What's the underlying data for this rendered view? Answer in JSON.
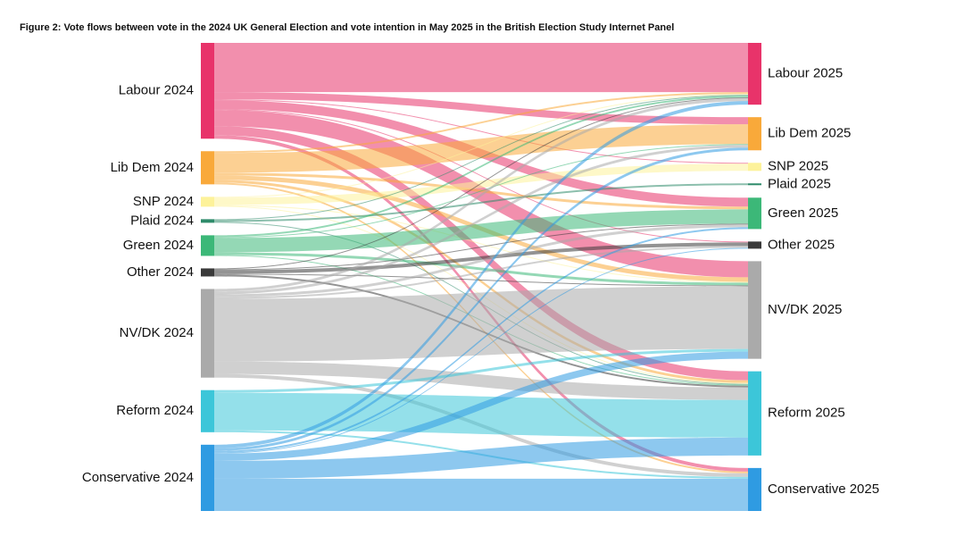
{
  "chart_data": {
    "type": "sankey",
    "title": "Figure 2: Vote flows between vote in the 2024 UK General Election and vote intention in May 2025 in the British Election Study Internet Panel",
    "left_nodes": [
      {
        "name": "Labour 2024",
        "color": "#e8336a"
      },
      {
        "name": "Lib Dem 2024",
        "color": "#f9a93a"
      },
      {
        "name": "SNP 2024",
        "color": "#fdf29a"
      },
      {
        "name": "Plaid 2024",
        "color": "#2e8b6a"
      },
      {
        "name": "Green 2024",
        "color": "#3cb878"
      },
      {
        "name": "Other 2024",
        "color": "#3a3a3a"
      },
      {
        "name": "NV/DK 2024",
        "color": "#aaaaaa"
      },
      {
        "name": "Reform 2024",
        "color": "#3cc6d9"
      },
      {
        "name": "Conservative 2024",
        "color": "#2f9be2"
      }
    ],
    "right_nodes": [
      {
        "name": "Labour 2025",
        "color": "#e8336a"
      },
      {
        "name": "Lib Dem 2025",
        "color": "#f9a93a"
      },
      {
        "name": "SNP 2025",
        "color": "#fdf29a"
      },
      {
        "name": "Plaid 2025",
        "color": "#2e8b6a"
      },
      {
        "name": "Green 2025",
        "color": "#3cb878"
      },
      {
        "name": "Other 2025",
        "color": "#3a3a3a"
      },
      {
        "name": "NV/DK 2025",
        "color": "#aaaaaa"
      },
      {
        "name": "Reform 2025",
        "color": "#3cc6d9"
      },
      {
        "name": "Conservative 2025",
        "color": "#2f9be2"
      }
    ],
    "flows": [
      {
        "source": 0,
        "target": 0,
        "value": 55
      },
      {
        "source": 0,
        "target": 1,
        "value": 8
      },
      {
        "source": 0,
        "target": 2,
        "value": 1
      },
      {
        "source": 0,
        "target": 4,
        "value": 10
      },
      {
        "source": 0,
        "target": 5,
        "value": 1
      },
      {
        "source": 0,
        "target": 6,
        "value": 18
      },
      {
        "source": 0,
        "target": 7,
        "value": 10
      },
      {
        "source": 0,
        "target": 8,
        "value": 4
      },
      {
        "source": 1,
        "target": 0,
        "value": 2
      },
      {
        "source": 1,
        "target": 1,
        "value": 22
      },
      {
        "source": 1,
        "target": 4,
        "value": 3
      },
      {
        "source": 1,
        "target": 6,
        "value": 5
      },
      {
        "source": 1,
        "target": 7,
        "value": 3
      },
      {
        "source": 1,
        "target": 8,
        "value": 2
      },
      {
        "source": 2,
        "target": 0,
        "value": 1
      },
      {
        "source": 2,
        "target": 2,
        "value": 8
      },
      {
        "source": 2,
        "target": 6,
        "value": 1
      },
      {
        "source": 2,
        "target": 7,
        "value": 1
      },
      {
        "source": 3,
        "target": 0,
        "value": 1
      },
      {
        "source": 3,
        "target": 3,
        "value": 2
      },
      {
        "source": 3,
        "target": 7,
        "value": 1
      },
      {
        "source": 4,
        "target": 0,
        "value": 2
      },
      {
        "source": 4,
        "target": 1,
        "value": 1
      },
      {
        "source": 4,
        "target": 4,
        "value": 16
      },
      {
        "source": 4,
        "target": 6,
        "value": 3
      },
      {
        "source": 4,
        "target": 7,
        "value": 1
      },
      {
        "source": 5,
        "target": 0,
        "value": 1
      },
      {
        "source": 5,
        "target": 4,
        "value": 1
      },
      {
        "source": 5,
        "target": 5,
        "value": 4
      },
      {
        "source": 5,
        "target": 6,
        "value": 1
      },
      {
        "source": 5,
        "target": 7,
        "value": 2
      },
      {
        "source": 6,
        "target": 0,
        "value": 3
      },
      {
        "source": 6,
        "target": 1,
        "value": 3
      },
      {
        "source": 6,
        "target": 4,
        "value": 3
      },
      {
        "source": 6,
        "target": 5,
        "value": 2
      },
      {
        "source": 6,
        "target": 6,
        "value": 70
      },
      {
        "source": 6,
        "target": 7,
        "value": 14
      },
      {
        "source": 6,
        "target": 8,
        "value": 4
      },
      {
        "source": 7,
        "target": 6,
        "value": 3
      },
      {
        "source": 7,
        "target": 7,
        "value": 42
      },
      {
        "source": 7,
        "target": 8,
        "value": 2
      },
      {
        "source": 8,
        "target": 0,
        "value": 4
      },
      {
        "source": 8,
        "target": 1,
        "value": 3
      },
      {
        "source": 8,
        "target": 4,
        "value": 2
      },
      {
        "source": 8,
        "target": 5,
        "value": 1
      },
      {
        "source": 8,
        "target": 6,
        "value": 8
      },
      {
        "source": 8,
        "target": 7,
        "value": 20
      },
      {
        "source": 8,
        "target": 8,
        "value": 36
      }
    ]
  }
}
